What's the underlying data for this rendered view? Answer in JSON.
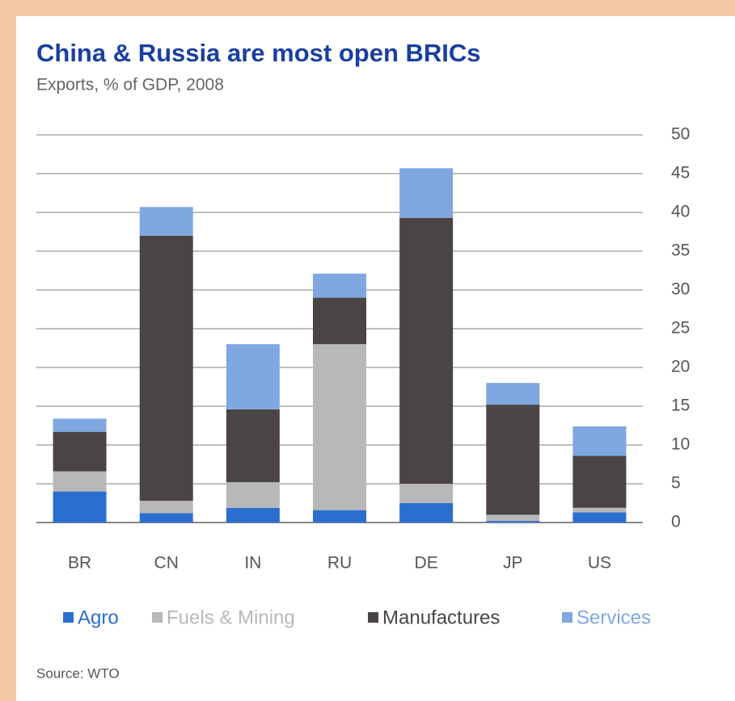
{
  "chart_data": {
    "type": "stacked_bar",
    "title": "China & Russia  are most  open BRICs",
    "subtitle": "Exports, % of GDP, 2008",
    "source": "Source: WTO",
    "categories": [
      "BR",
      "CN",
      "IN",
      "RU",
      "DE",
      "JP",
      "US"
    ],
    "series": [
      {
        "name": "Agro",
        "color": "#2a6fd0",
        "values": [
          4.0,
          1.2,
          1.9,
          1.6,
          2.5,
          0.2,
          1.3
        ]
      },
      {
        "name": "Fuels & Mining",
        "color": "#b8b8b8",
        "values": [
          2.6,
          1.6,
          3.3,
          21.4,
          2.5,
          0.8,
          0.6
        ]
      },
      {
        "name": "Manufactures",
        "color": "#4a4544",
        "values": [
          5.1,
          34.2,
          9.4,
          6.0,
          34.3,
          14.2,
          6.7
        ]
      },
      {
        "name": "Services",
        "color": "#7fa7e0",
        "values": [
          1.7,
          3.7,
          8.4,
          3.1,
          6.4,
          2.8,
          3.8
        ]
      }
    ],
    "ylim": [
      0,
      50
    ],
    "yticks": [
      0,
      5,
      10,
      15,
      20,
      25,
      30,
      35,
      40,
      45,
      50
    ],
    "grid": true,
    "legend": "bottom"
  }
}
